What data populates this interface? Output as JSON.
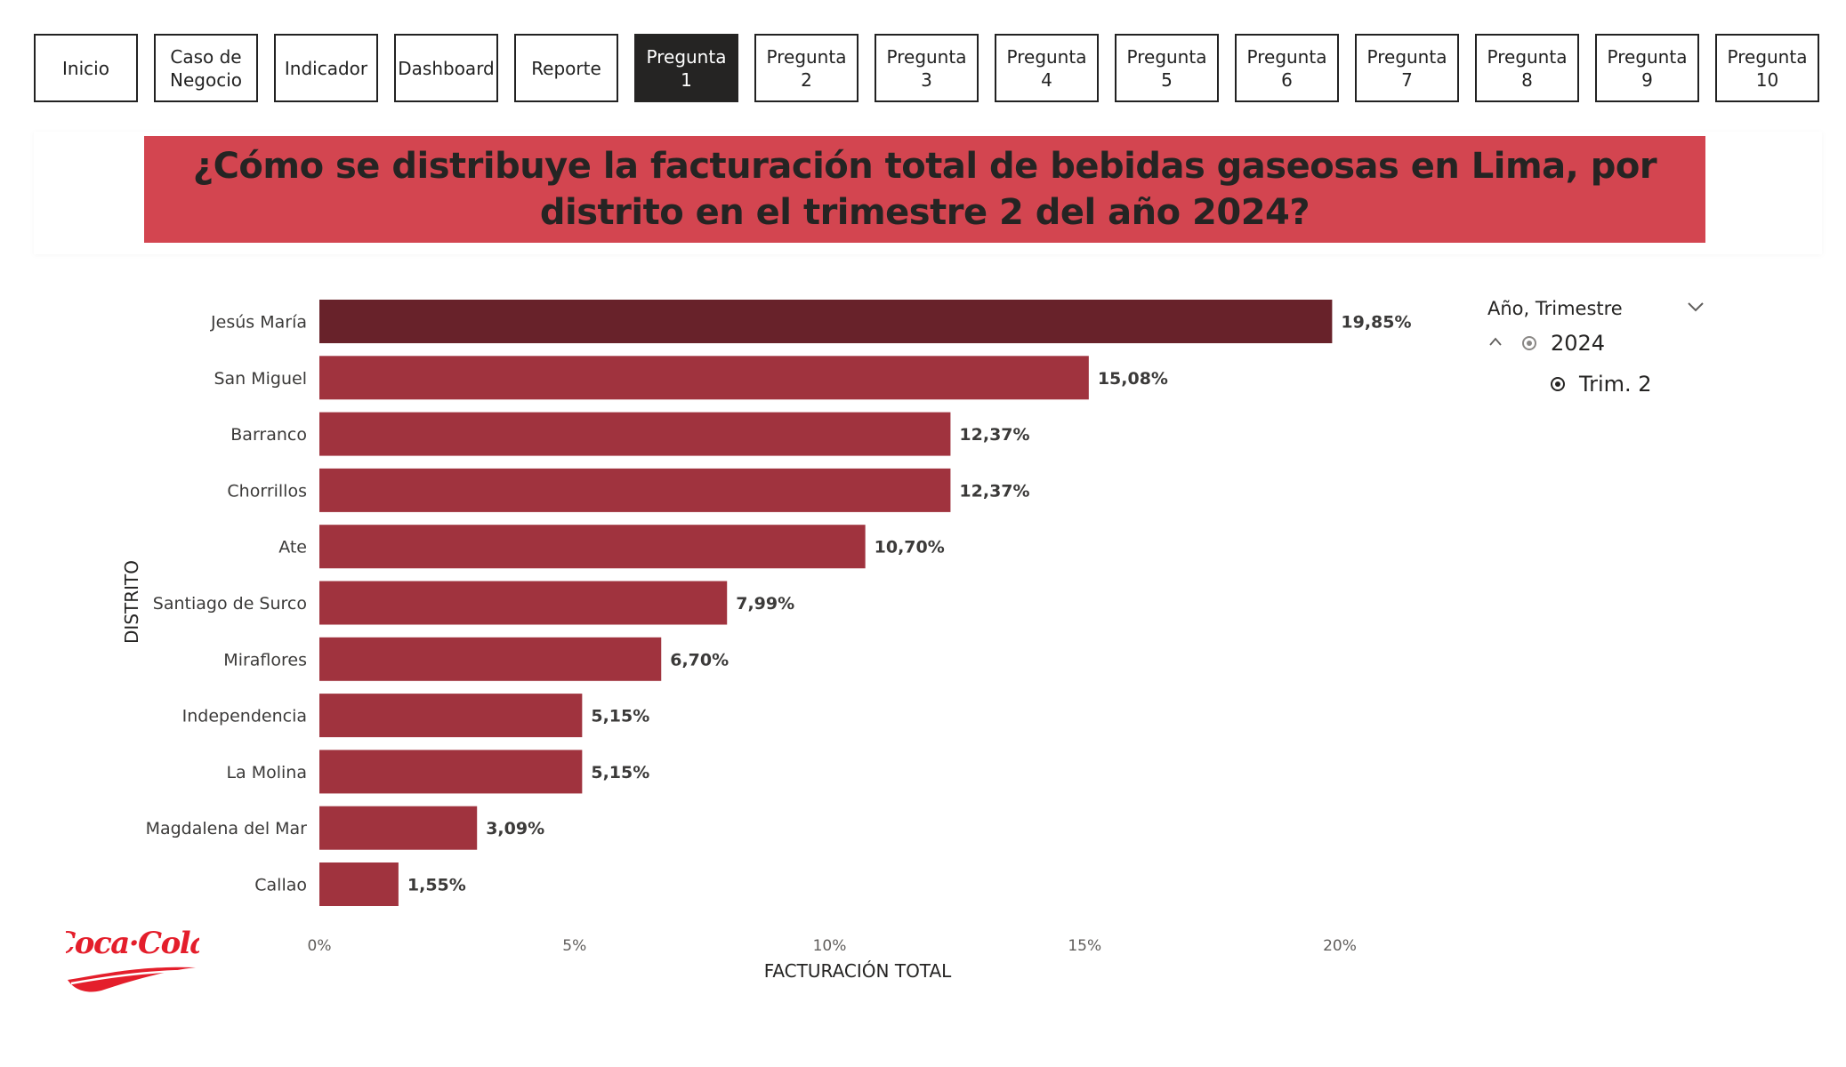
{
  "nav": {
    "buttons": [
      {
        "label": "Inicio",
        "active": false
      },
      {
        "label": "Caso de Negocio",
        "active": false
      },
      {
        "label": "Indicador",
        "active": false
      },
      {
        "label": "Dashboard",
        "active": false
      },
      {
        "label": "Reporte",
        "active": false
      },
      {
        "label": "Pregunta 1",
        "active": true
      },
      {
        "label": "Pregunta 2",
        "active": false
      },
      {
        "label": "Pregunta 3",
        "active": false
      },
      {
        "label": "Pregunta 4",
        "active": false
      },
      {
        "label": "Pregunta 5",
        "active": false
      },
      {
        "label": "Pregunta 6",
        "active": false
      },
      {
        "label": "Pregunta 7",
        "active": false
      },
      {
        "label": "Pregunta 8",
        "active": false
      },
      {
        "label": "Pregunta 9",
        "active": false
      },
      {
        "label": "Pregunta 10",
        "active": false
      }
    ]
  },
  "title": "¿Cómo se distribuye la facturación total de bebidas gaseosas en Lima, por distrito en el trimestre 2 del año 2024?",
  "colors": {
    "title_bg": "#d34550",
    "bar": "#a0333e",
    "bar_highlight": "#68222a",
    "active_button": "#252423"
  },
  "chart_data": {
    "type": "bar",
    "orientation": "horizontal",
    "categories": [
      "Jesús María",
      "San Miguel",
      "Barranco",
      "Chorrillos",
      "Ate",
      "Santiago de Surco",
      "Miraflores",
      "Independencia",
      "La Molina",
      "Magdalena del Mar",
      "Callao"
    ],
    "values": [
      19.85,
      15.08,
      12.37,
      12.37,
      10.7,
      7.99,
      6.7,
      5.15,
      5.15,
      3.09,
      1.55
    ],
    "value_labels": [
      "19,85%",
      "15,08%",
      "12,37%",
      "12,37%",
      "10,70%",
      "7,99%",
      "6,70%",
      "5,15%",
      "5,15%",
      "3,09%",
      "1,55%"
    ],
    "xlabel": "FACTURACIÓN TOTAL",
    "ylabel": "DISTRITO",
    "xlim": [
      0,
      20
    ],
    "xticks": [
      0,
      5,
      10,
      15,
      20
    ],
    "xtick_labels": [
      "0%",
      "5%",
      "10%",
      "15%",
      "20%"
    ],
    "highlighted_category": "Jesús María",
    "grid": false
  },
  "slicer": {
    "title": "Año, Trimestre",
    "year": "2024",
    "quarter": "Trim. 2"
  },
  "logo": {
    "text": "Coca-Cola",
    "color": "#e41e2b"
  }
}
